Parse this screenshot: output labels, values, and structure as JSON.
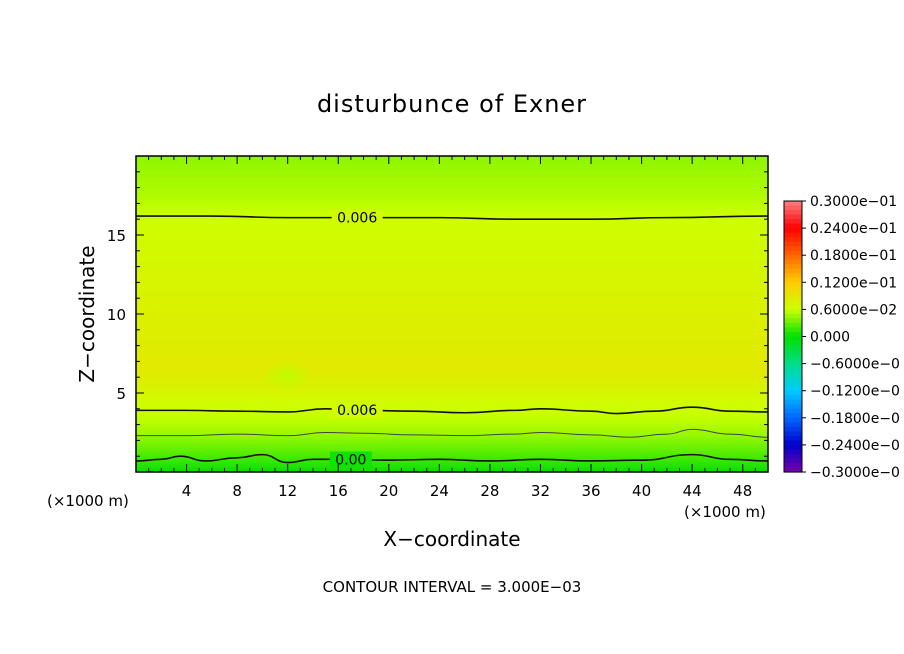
{
  "chart_data": {
    "type": "heatmap",
    "title": "disturbunce of Exner",
    "xlabel": "X−coordinate",
    "ylabel": "Z−coordinate",
    "x_unit_left": "(×1000 m)",
    "x_unit_right": "(×1000 m)",
    "xlim": [
      0,
      50
    ],
    "ylim": [
      0,
      20
    ],
    "x_ticks": [
      4,
      8,
      12,
      16,
      20,
      24,
      28,
      32,
      36,
      40,
      44,
      48
    ],
    "y_ticks": [
      5,
      10,
      15
    ],
    "x_tick_labels": [
      "4",
      "8",
      "12",
      "16",
      "20",
      "24",
      "28",
      "32",
      "36",
      "40",
      "44",
      "48"
    ],
    "y_tick_labels": [
      "5",
      "10",
      "15"
    ],
    "footer": "CONTOUR INTERVAL = 3.000E−03",
    "color_scale": {
      "min": -0.03,
      "max": 0.03,
      "labels": [
        "0.3000e−01",
        "0.2400e−01",
        "0.1800e−01",
        "0.1200e−01",
        "0.6000e−02",
        "0.000",
        "−0.6000e−0",
        "−0.1200e−0",
        "−0.1800e−0",
        "−0.2400e−0",
        "−0.3000e−0"
      ],
      "colors": [
        "#ff8080",
        "#ff0000",
        "#ff6600",
        "#ffcc00",
        "#ccff00",
        "#00e000",
        "#00dd88",
        "#00ccff",
        "#0066ff",
        "#0000cc",
        "#7700aa"
      ]
    },
    "field_bands": [
      {
        "z": 0.0,
        "value": 0.0
      },
      {
        "z": 0.7,
        "value": 0.0015
      },
      {
        "z": 1.5,
        "value": 0.003
      },
      {
        "z": 2.4,
        "value": 0.0045
      },
      {
        "z": 3.2,
        "value": 0.0055
      },
      {
        "z": 3.9,
        "value": 0.006
      },
      {
        "z": 5.5,
        "value": 0.0075
      },
      {
        "z": 6.5,
        "value": 0.0085
      },
      {
        "z": 8.0,
        "value": 0.0082
      },
      {
        "z": 11.0,
        "value": 0.0075
      },
      {
        "z": 14.0,
        "value": 0.0068
      },
      {
        "z": 16.2,
        "value": 0.006
      },
      {
        "z": 17.5,
        "value": 0.0052
      },
      {
        "z": 20.0,
        "value": 0.0042
      }
    ],
    "contours": [
      {
        "value": 0.006,
        "label": "0.006",
        "label_x": 17.5,
        "weight": "major",
        "points": [
          [
            0,
            16.2
          ],
          [
            6,
            16.2
          ],
          [
            12,
            16.1
          ],
          [
            18,
            16.1
          ],
          [
            24,
            16.1
          ],
          [
            30,
            16.0
          ],
          [
            36,
            16.0
          ],
          [
            42,
            16.1
          ],
          [
            50,
            16.2
          ]
        ]
      },
      {
        "value": 0.006,
        "label": "0.006",
        "label_x": 17.5,
        "weight": "major",
        "points": [
          [
            0,
            3.9
          ],
          [
            4,
            3.9
          ],
          [
            8,
            3.85
          ],
          [
            12,
            3.8
          ],
          [
            15,
            4.0
          ],
          [
            18,
            3.9
          ],
          [
            22,
            3.85
          ],
          [
            26,
            3.75
          ],
          [
            30,
            3.9
          ],
          [
            32,
            4.0
          ],
          [
            36,
            3.85
          ],
          [
            38,
            3.7
          ],
          [
            41,
            3.85
          ],
          [
            44,
            4.1
          ],
          [
            47,
            3.85
          ],
          [
            50,
            3.8
          ]
        ]
      },
      {
        "value": 0.003,
        "label": "",
        "label_x": 0,
        "weight": "minor",
        "points": [
          [
            0,
            2.3
          ],
          [
            4,
            2.3
          ],
          [
            8,
            2.4
          ],
          [
            12,
            2.3
          ],
          [
            15,
            2.5
          ],
          [
            18,
            2.45
          ],
          [
            22,
            2.35
          ],
          [
            26,
            2.3
          ],
          [
            30,
            2.4
          ],
          [
            32,
            2.5
          ],
          [
            36,
            2.35
          ],
          [
            39,
            2.2
          ],
          [
            42,
            2.4
          ],
          [
            44,
            2.7
          ],
          [
            47,
            2.4
          ],
          [
            50,
            2.2
          ]
        ]
      },
      {
        "value": 0.0,
        "label": "0.00",
        "label_x": 17.0,
        "weight": "major",
        "points": [
          [
            0,
            0.7
          ],
          [
            2,
            0.8
          ],
          [
            3.5,
            1.0
          ],
          [
            5.5,
            0.7
          ],
          [
            8,
            0.9
          ],
          [
            10,
            1.1
          ],
          [
            12,
            0.6
          ],
          [
            14,
            0.8
          ],
          [
            16,
            0.8
          ],
          [
            20,
            0.75
          ],
          [
            24,
            0.8
          ],
          [
            28,
            0.7
          ],
          [
            32,
            0.8
          ],
          [
            36,
            0.7
          ],
          [
            40,
            0.75
          ],
          [
            44,
            1.1
          ],
          [
            47,
            0.8
          ],
          [
            50,
            0.7
          ]
        ]
      }
    ],
    "highlights": [
      {
        "x": 12,
        "z": 6.1,
        "value": 0.0092
      }
    ]
  }
}
